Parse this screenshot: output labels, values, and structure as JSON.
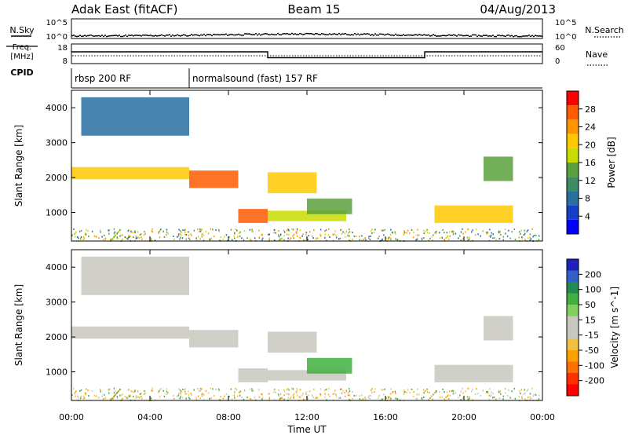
{
  "header": {
    "station": "Adak East (fitACF)",
    "beam": "Beam 15",
    "date": "04/Aug/2013"
  },
  "panels": {
    "nsky_label": "N.Sky",
    "nsearch_label": "N.Search",
    "freq_label_line1": "Freq.",
    "freq_label_line2": "[MHz]",
    "nave_label": "Nave",
    "cpid_label": "CPID",
    "nsky_ticks": [
      "10^5",
      "10^0"
    ],
    "nsearch_ticks": [
      "10^5",
      "10^0"
    ],
    "freq_ticks": [
      "18",
      "8"
    ],
    "nave_ticks": [
      "60",
      "0"
    ]
  },
  "cpid_segments": [
    {
      "label": "rbsp 200 RF",
      "start_hour": 0,
      "end_hour": 6
    },
    {
      "label": "normalsound (fast) 157 RF",
      "start_hour": 6,
      "end_hour": 24
    }
  ],
  "colorbars": {
    "power": {
      "label": "Power [dB]",
      "ticks": [
        "28",
        "24",
        "20",
        "16",
        "12",
        "8",
        "4"
      ],
      "colors": [
        "#ff0000",
        "#ff5a00",
        "#ff9600",
        "#ffc800",
        "#c8dc00",
        "#5aa03c",
        "#3c8c64",
        "#2870a0",
        "#1440c8",
        "#0000ff"
      ]
    },
    "velocity": {
      "label": "Velocity [m s^-1]",
      "ticks": [
        "200",
        "100",
        "50",
        "15",
        "-15",
        "-50",
        "-100",
        "-200"
      ],
      "colors": [
        "#2020c0",
        "#3060c8",
        "#208c50",
        "#40b040",
        "#80d060",
        "#c8c8c0",
        "#c8c8c0",
        "#f0c040",
        "#ffa000",
        "#ff7000",
        "#ff3000",
        "#ff0000"
      ]
    }
  },
  "chart_data": {
    "type": "heatmap",
    "xlabel": "Time UT",
    "ylabel": "Slant Range [km]",
    "x_ticks": [
      "00:00",
      "04:00",
      "08:00",
      "12:00",
      "16:00",
      "20:00",
      "00:00"
    ],
    "y_ticks": [
      "4000",
      "3000",
      "2000",
      "1000"
    ],
    "xlim_hours": [
      0,
      24
    ],
    "ylim_km": [
      180,
      4500
    ],
    "frequency_mhz": [
      {
        "start_hour": 0,
        "end_hour": 10,
        "value": 14
      },
      {
        "start_hour": 10,
        "end_hour": 18,
        "value": 11
      },
      {
        "start_hour": 18,
        "end_hour": 24,
        "value": 14
      }
    ],
    "echo_bands": [
      {
        "start_hour": 0.0,
        "end_hour": 6.0,
        "range_km": [
          1950,
          2300
        ],
        "power_db": 22,
        "velocity_ms": -5
      },
      {
        "start_hour": 6.0,
        "end_hour": 8.5,
        "range_km": [
          1700,
          2200
        ],
        "power_db": 26,
        "velocity_ms": -5
      },
      {
        "start_hour": 8.5,
        "end_hour": 10.0,
        "range_km": [
          700,
          1100
        ],
        "power_db": 28,
        "velocity_ms": -5
      },
      {
        "start_hour": 10.0,
        "end_hour": 12.5,
        "range_km": [
          1550,
          2150
        ],
        "power_db": 22,
        "velocity_ms": -5
      },
      {
        "start_hour": 10.0,
        "end_hour": 14.0,
        "range_km": [
          750,
          1050
        ],
        "power_db": 18,
        "velocity_ms": 10
      },
      {
        "start_hour": 12.0,
        "end_hour": 14.3,
        "range_km": [
          950,
          1400
        ],
        "power_db": 14,
        "velocity_ms": 60
      },
      {
        "start_hour": 18.5,
        "end_hour": 22.5,
        "range_km": [
          700,
          1200
        ],
        "power_db": 20,
        "velocity_ms": -5
      },
      {
        "start_hour": 21.0,
        "end_hour": 22.5,
        "range_km": [
          1900,
          2600
        ],
        "power_db": 16,
        "velocity_ms": -5
      },
      {
        "start_hour": 0.5,
        "end_hour": 6.0,
        "range_km": [
          3200,
          4300
        ],
        "power_db": 10,
        "velocity_ms": -5
      }
    ]
  }
}
